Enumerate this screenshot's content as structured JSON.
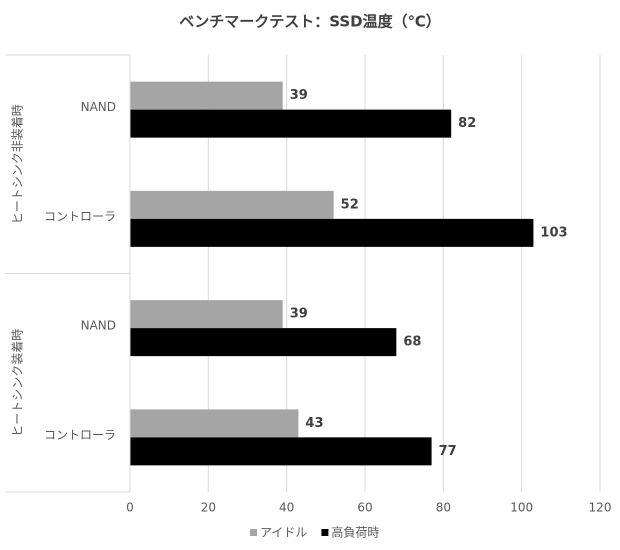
{
  "chart_data": {
    "type": "bar",
    "orientation": "horizontal",
    "title": "ベンチマークテスト：SSD温度（℃）",
    "groups": [
      {
        "label": "ヒートシンク非装着時",
        "categories": [
          "NAND",
          "コントローラ"
        ]
      },
      {
        "label": "ヒートシンク装着時",
        "categories": [
          "NAND",
          "コントローラ"
        ]
      }
    ],
    "series": [
      {
        "name": "アイドル",
        "color": "#a5a5a5",
        "values": [
          39,
          52,
          39,
          43
        ]
      },
      {
        "name": "高負荷時",
        "color": "#000000",
        "values": [
          82,
          103,
          68,
          77
        ]
      }
    ],
    "xlim": [
      0,
      120
    ],
    "xticks": [
      0,
      20,
      40,
      60,
      80,
      100,
      120
    ],
    "grid": true,
    "legend": "bottom"
  }
}
